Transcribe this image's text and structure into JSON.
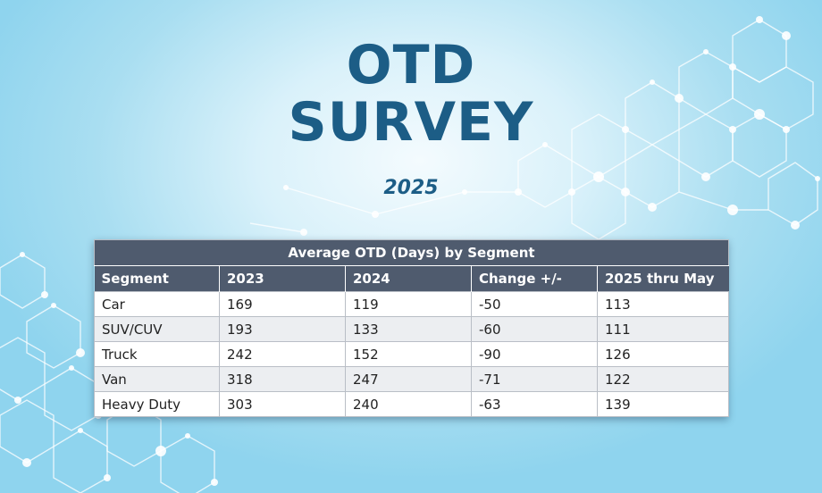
{
  "title_line1": "OTD",
  "title_line2": "SURVEY",
  "year": "2025",
  "table": {
    "caption": "Average OTD (Days) by Segment",
    "headers": [
      "Segment",
      "2023",
      "2024",
      "Change +/-",
      "2025 thru May"
    ],
    "rows": [
      [
        "Car",
        "169",
        "119",
        "-50",
        "113"
      ],
      [
        "SUV/CUV",
        "193",
        "133",
        "-60",
        "111"
      ],
      [
        "Truck",
        "242",
        "152",
        "-90",
        "126"
      ],
      [
        "Van",
        "318",
        "247",
        "-71",
        "122"
      ],
      [
        "Heavy Duty",
        "303",
        "240",
        "-63",
        "139"
      ]
    ]
  },
  "colors": {
    "title": "#1c5d86",
    "header_bg": "#4f5b6e",
    "alt_row": "#eceef1",
    "background": "#a9def1"
  }
}
